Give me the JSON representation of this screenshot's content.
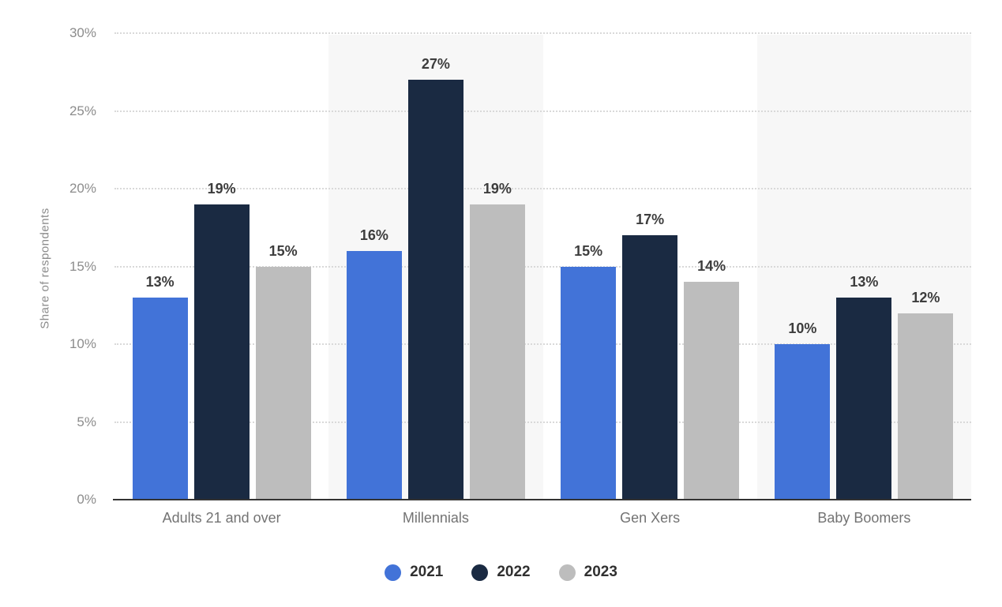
{
  "chart_data": {
    "type": "bar",
    "title": "",
    "ylabel": "Share of respondents",
    "categories": [
      "Adults 21 and over",
      "Millennials",
      "Gen Xers",
      "Baby Boomers"
    ],
    "series": [
      {
        "name": "2021",
        "color": "#4273d8",
        "values": [
          13,
          16,
          15,
          10
        ]
      },
      {
        "name": "2022",
        "color": "#1a2a42",
        "values": [
          19,
          27,
          17,
          13
        ]
      },
      {
        "name": "2023",
        "color": "#bdbdbd",
        "values": [
          15,
          19,
          14,
          12
        ]
      }
    ],
    "value_suffix": "%",
    "yticks": [
      0,
      5,
      10,
      15,
      20,
      25,
      30
    ],
    "tick_suffix": "%",
    "ylim": [
      0,
      30
    ],
    "grid": "dotted-horizontal",
    "legend_position": "bottom-center",
    "alt_band_color": "#f7f7f7",
    "background": "#ffffff"
  }
}
